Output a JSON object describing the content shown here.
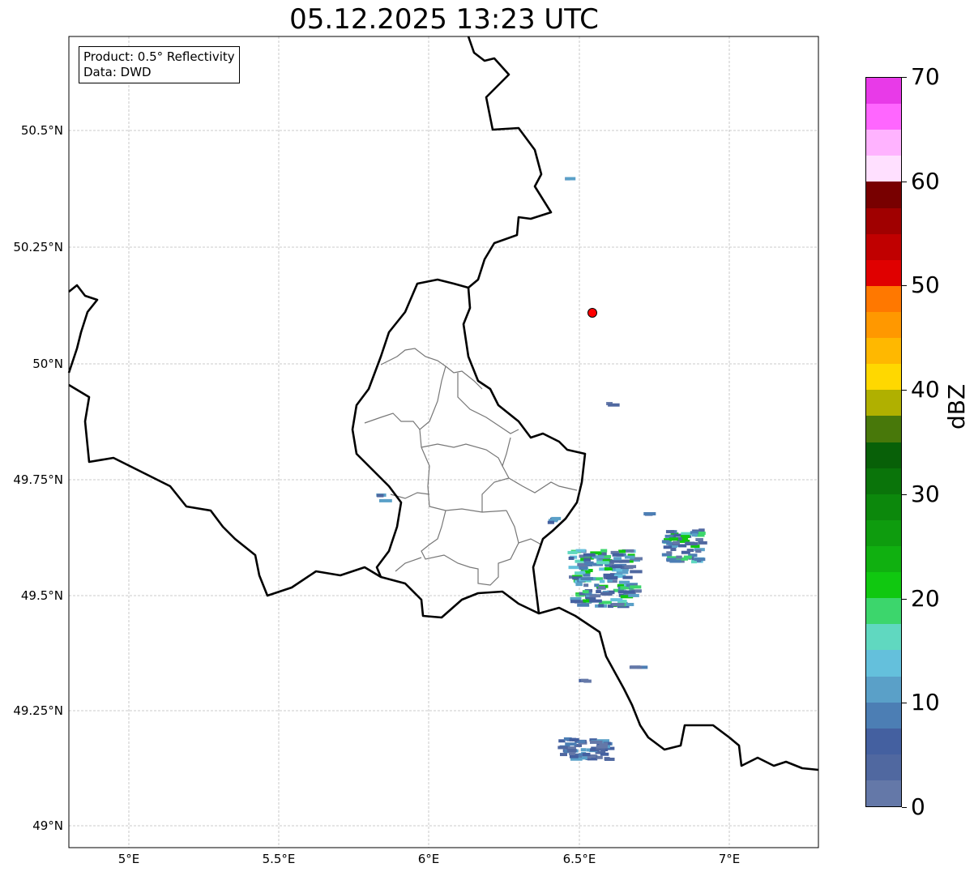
{
  "title": "05.12.2025 13:23 UTC",
  "info_box": {
    "line1": "Product: 0.5° Reflectivity",
    "line2": "Data: DWD"
  },
  "lat_labels": [
    "50.5°N",
    "50.25°N",
    "50°N",
    "49.75°N",
    "49.5°N",
    "49.25°N",
    "49°N"
  ],
  "lon_labels": [
    "5°E",
    "5.5°E",
    "6°E",
    "6.5°E",
    "7°E"
  ],
  "colorbar": {
    "label": "dBZ",
    "ticks": [
      "0",
      "10",
      "20",
      "30",
      "40",
      "50",
      "60",
      "70"
    ],
    "colors_top_to_bottom": [
      "#e83ae8",
      "#ff66ff",
      "#ffb3ff",
      "#ffe0ff",
      "#780000",
      "#a00000",
      "#c00000",
      "#e00000",
      "#ff7800",
      "#ff9800",
      "#ffb800",
      "#ffd800",
      "#b0b000",
      "#48780a",
      "#086008",
      "#0a740a",
      "#0c880c",
      "#0e9c0e",
      "#10b010",
      "#10c810",
      "#3cd66c",
      "#60d8c0",
      "#64c0dc",
      "#5aa0c8",
      "#4c7eb4",
      "#4460a0",
      "#5068a0",
      "#6478a8"
    ]
  },
  "radar_site_color": "#ff0000"
}
